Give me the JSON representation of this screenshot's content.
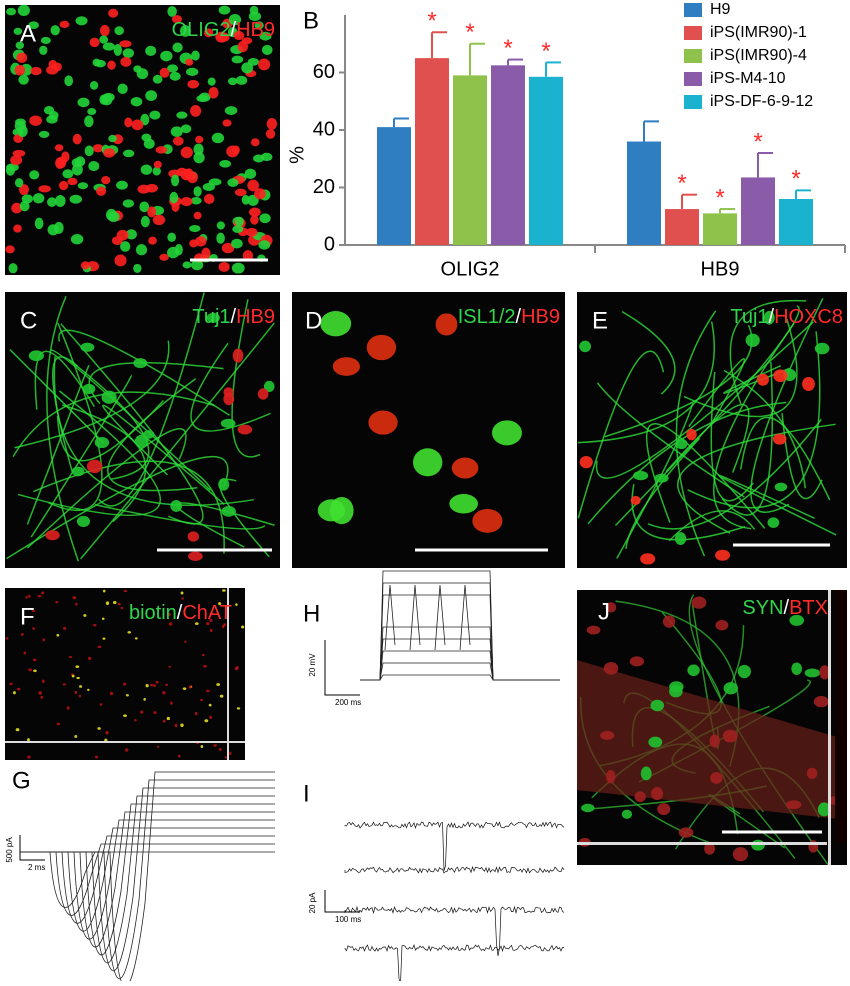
{
  "chart_data": {
    "type": "bar",
    "y_label": "%",
    "categories": [
      "OLIG2",
      "HB9"
    ],
    "series": [
      {
        "name": "H9",
        "color": "#2f7ec1",
        "values": [
          41,
          36
        ],
        "errors": [
          3,
          7
        ]
      },
      {
        "name": "iPS(IMR90)-1",
        "color": "#e0504f",
        "values": [
          65,
          12.5
        ],
        "errors": [
          9,
          5
        ],
        "marker": "*"
      },
      {
        "name": "iPS(IMR90)-4",
        "color": "#8fc24a",
        "values": [
          59,
          11
        ],
        "errors": [
          11,
          1.5
        ],
        "marker": "*"
      },
      {
        "name": "iPS-M4-10",
        "color": "#8a5ba8",
        "values": [
          62.5,
          23.5
        ],
        "errors": [
          2,
          8.5
        ],
        "marker": "*"
      },
      {
        "name": "iPS-DF-6-9-12",
        "color": "#1bb2cf",
        "values": [
          58.5,
          16
        ],
        "errors": [
          5,
          3
        ],
        "marker": "*"
      }
    ],
    "ylim": [
      0,
      80
    ],
    "yticks": [
      0,
      20,
      40,
      60
    ],
    "marker_color": "#ff2a2a"
  },
  "stain_colors": [
    "#2fd54a",
    "#ffffff",
    "#ff2a2a"
  ],
  "panels": [
    {
      "letter": "A",
      "stain": [
        "OLIG2",
        "/",
        "HB9"
      ]
    },
    {
      "letter": "B"
    },
    {
      "letter": "C",
      "stain": [
        "Tuj1",
        "/",
        "HB9"
      ]
    },
    {
      "letter": "D",
      "stain": [
        "ISL1/2",
        "/",
        "HB9"
      ]
    },
    {
      "letter": "E",
      "stain": [
        "Tuj1",
        "/",
        "HOXC8"
      ]
    },
    {
      "letter": "F",
      "stain": [
        "biotin",
        "/",
        "ChAT"
      ]
    },
    {
      "letter": "G",
      "scale": [
        "500 pA",
        "2 ms"
      ]
    },
    {
      "letter": "H",
      "scale": [
        "20 mV",
        "200 ms"
      ]
    },
    {
      "letter": "I",
      "scale": [
        "20 pA",
        "100 ms"
      ]
    },
    {
      "letter": "J",
      "stain": [
        "SYN",
        "/",
        "BTX"
      ]
    }
  ]
}
